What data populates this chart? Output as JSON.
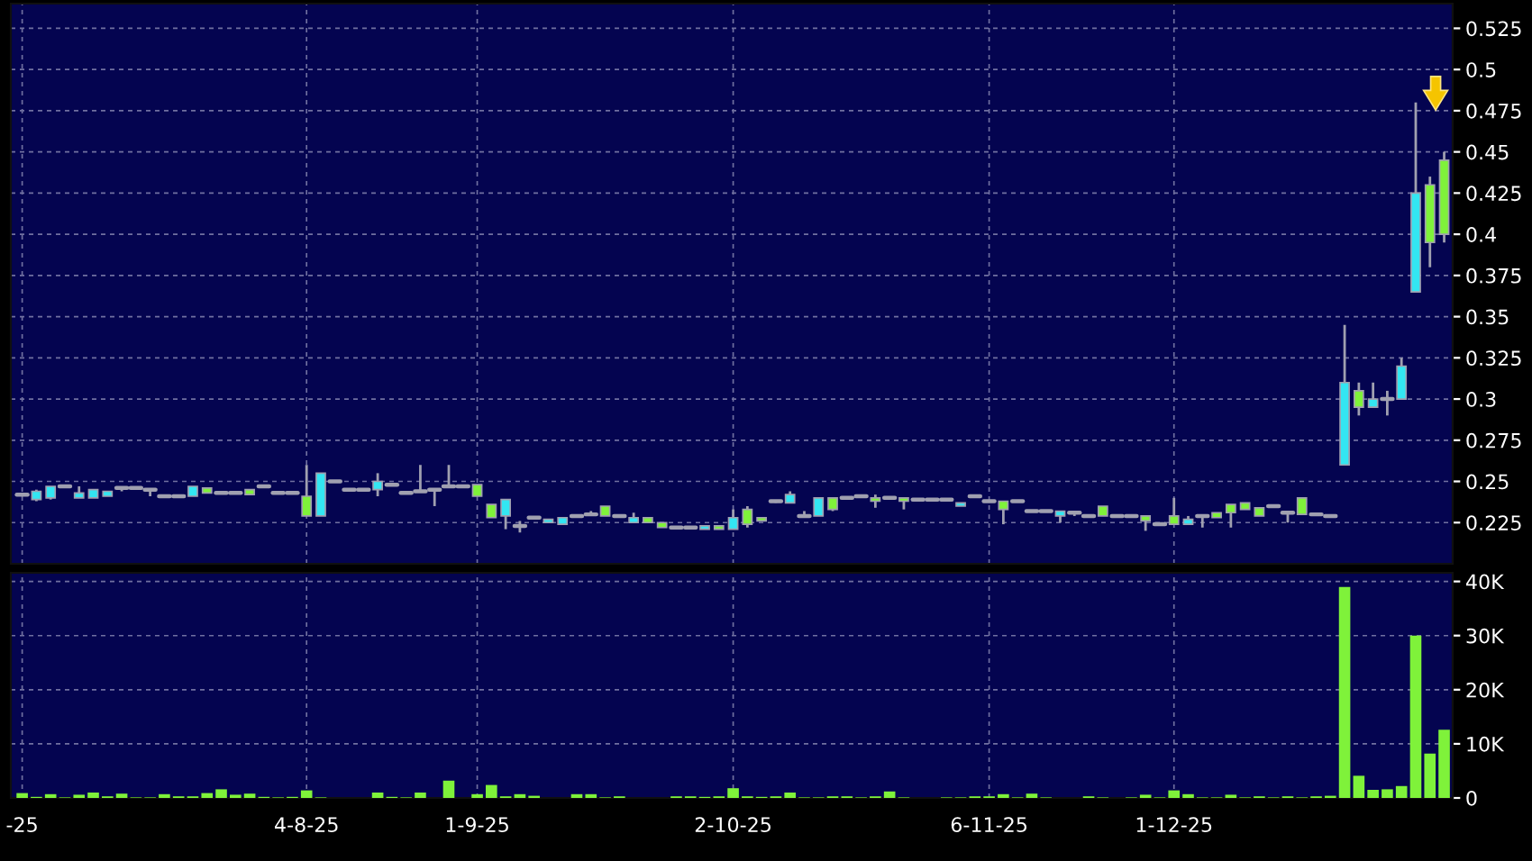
{
  "chart_data": [
    {
      "type": "candlestick",
      "tick_labels": "y",
      "grid": true,
      "categories": [
        null,
        null,
        null,
        null,
        null,
        null,
        null,
        null,
        null,
        null,
        null,
        null,
        null,
        null,
        null,
        null,
        null,
        null,
        null,
        null,
        null,
        null,
        null,
        null,
        null,
        null,
        null,
        null,
        null,
        null,
        null,
        null,
        null,
        null,
        null,
        null,
        null,
        null,
        null,
        null,
        null,
        null,
        null,
        null,
        null,
        null,
        null,
        null,
        null,
        null,
        null,
        null,
        null,
        null,
        null,
        null,
        null,
        null,
        null,
        null,
        null,
        null,
        null,
        null,
        null,
        null,
        null,
        null,
        null,
        null,
        null,
        null,
        null,
        null,
        null,
        null,
        null,
        null,
        null,
        null,
        null,
        null,
        null,
        null,
        null,
        null,
        null,
        null,
        null,
        null,
        null,
        null,
        null,
        null,
        null,
        null,
        null,
        null,
        null,
        null,
        null
      ],
      "ohlc": [
        [
          0.242,
          0.243,
          0.241,
          0.242
        ],
        [
          0.239,
          0.245,
          0.238,
          0.244
        ],
        [
          0.24,
          0.247,
          0.239,
          0.247
        ],
        [
          0.247,
          0.247,
          0.247,
          0.247
        ],
        [
          0.24,
          0.247,
          0.24,
          0.243
        ],
        [
          0.24,
          0.245,
          0.24,
          0.245
        ],
        [
          0.241,
          0.244,
          0.241,
          0.244
        ],
        [
          0.246,
          0.247,
          0.244,
          0.246
        ],
        [
          0.246,
          0.246,
          0.246,
          0.246
        ],
        [
          0.245,
          0.245,
          0.241,
          0.245
        ],
        [
          0.241,
          0.241,
          0.241,
          0.241
        ],
        [
          0.241,
          0.241,
          0.241,
          0.241
        ],
        [
          0.241,
          0.247,
          0.241,
          0.247
        ],
        [
          0.246,
          0.246,
          0.243,
          0.243
        ],
        [
          0.243,
          0.243,
          0.243,
          0.243
        ],
        [
          0.243,
          0.243,
          0.243,
          0.243
        ],
        [
          0.245,
          0.245,
          0.242,
          0.242
        ],
        [
          0.247,
          0.247,
          0.246,
          0.247
        ],
        [
          0.243,
          0.243,
          0.243,
          0.243
        ],
        [
          0.243,
          0.243,
          0.243,
          0.243
        ],
        [
          0.241,
          0.26,
          0.229,
          0.229
        ],
        [
          0.229,
          0.255,
          0.229,
          0.255
        ],
        [
          0.25,
          0.25,
          0.25,
          0.25
        ],
        [
          0.245,
          0.245,
          0.245,
          0.245
        ],
        [
          0.245,
          0.245,
          0.245,
          0.245
        ],
        [
          0.245,
          0.255,
          0.241,
          0.25
        ],
        [
          0.248,
          0.248,
          0.248,
          0.248
        ],
        [
          0.243,
          0.243,
          0.243,
          0.243
        ],
        [
          0.244,
          0.26,
          0.244,
          0.244
        ],
        [
          0.245,
          0.245,
          0.235,
          0.245
        ],
        [
          0.247,
          0.26,
          0.247,
          0.247
        ],
        [
          0.247,
          0.247,
          0.247,
          0.247
        ],
        [
          0.248,
          0.248,
          0.241,
          0.241
        ],
        [
          0.236,
          0.236,
          0.228,
          0.228
        ],
        [
          0.229,
          0.239,
          0.221,
          0.239
        ],
        [
          0.223,
          0.226,
          0.219,
          0.223
        ],
        [
          0.228,
          0.228,
          0.228,
          0.228
        ],
        [
          0.225,
          0.227,
          0.225,
          0.227
        ],
        [
          0.224,
          0.228,
          0.224,
          0.228
        ],
        [
          0.229,
          0.229,
          0.229,
          0.229
        ],
        [
          0.23,
          0.232,
          0.23,
          0.23
        ],
        [
          0.235,
          0.235,
          0.229,
          0.229
        ],
        [
          0.229,
          0.229,
          0.229,
          0.229
        ],
        [
          0.225,
          0.231,
          0.225,
          0.228
        ],
        [
          0.228,
          0.228,
          0.225,
          0.225
        ],
        [
          0.225,
          0.225,
          0.222,
          0.222
        ],
        [
          0.222,
          0.222,
          0.222,
          0.222
        ],
        [
          0.222,
          0.222,
          0.222,
          0.222
        ],
        [
          0.221,
          0.223,
          0.221,
          0.223
        ],
        [
          0.223,
          0.223,
          0.221,
          0.221
        ],
        [
          0.221,
          0.233,
          0.221,
          0.228
        ],
        [
          0.233,
          0.235,
          0.222,
          0.224
        ],
        [
          0.228,
          0.228,
          0.226,
          0.226
        ],
        [
          0.238,
          0.238,
          0.237,
          0.238
        ],
        [
          0.237,
          0.244,
          0.237,
          0.242
        ],
        [
          0.229,
          0.232,
          0.229,
          0.229
        ],
        [
          0.229,
          0.24,
          0.229,
          0.24
        ],
        [
          0.24,
          0.24,
          0.232,
          0.233
        ],
        [
          0.24,
          0.24,
          0.24,
          0.24
        ],
        [
          0.241,
          0.241,
          0.241,
          0.241
        ],
        [
          0.24,
          0.242,
          0.234,
          0.238
        ],
        [
          0.24,
          0.24,
          0.24,
          0.24
        ],
        [
          0.24,
          0.24,
          0.233,
          0.238
        ],
        [
          0.239,
          0.239,
          0.239,
          0.239
        ],
        [
          0.239,
          0.239,
          0.239,
          0.239
        ],
        [
          0.239,
          0.239,
          0.239,
          0.239
        ],
        [
          0.235,
          0.237,
          0.235,
          0.237
        ],
        [
          0.241,
          0.241,
          0.241,
          0.241
        ],
        [
          0.238,
          0.238,
          0.238,
          0.238
        ],
        [
          0.238,
          0.238,
          0.224,
          0.233
        ],
        [
          0.238,
          0.238,
          0.238,
          0.238
        ],
        [
          0.232,
          0.232,
          0.232,
          0.232
        ],
        [
          0.232,
          0.232,
          0.232,
          0.232
        ],
        [
          0.229,
          0.232,
          0.225,
          0.232
        ],
        [
          0.231,
          0.231,
          0.229,
          0.231
        ],
        [
          0.229,
          0.229,
          0.229,
          0.229
        ],
        [
          0.235,
          0.235,
          0.229,
          0.229
        ],
        [
          0.229,
          0.229,
          0.229,
          0.229
        ],
        [
          0.229,
          0.229,
          0.229,
          0.229
        ],
        [
          0.229,
          0.229,
          0.22,
          0.226
        ],
        [
          0.224,
          0.224,
          0.224,
          0.224
        ],
        [
          0.229,
          0.24,
          0.224,
          0.224
        ],
        [
          0.224,
          0.229,
          0.224,
          0.227
        ],
        [
          0.229,
          0.229,
          0.222,
          0.229
        ],
        [
          0.231,
          0.231,
          0.228,
          0.228
        ],
        [
          0.236,
          0.236,
          0.222,
          0.231
        ],
        [
          0.237,
          0.237,
          0.233,
          0.233
        ],
        [
          0.234,
          0.234,
          0.229,
          0.229
        ],
        [
          0.235,
          0.236,
          0.234,
          0.235
        ],
        [
          0.231,
          0.232,
          0.225,
          0.231
        ],
        [
          0.24,
          0.24,
          0.23,
          0.23
        ],
        [
          0.23,
          0.23,
          0.23,
          0.23
        ],
        [
          0.229,
          0.229,
          0.229,
          0.229
        ],
        [
          0.26,
          0.345,
          0.26,
          0.31
        ],
        [
          0.305,
          0.31,
          0.29,
          0.295
        ],
        [
          0.295,
          0.31,
          0.295,
          0.3
        ],
        [
          0.3,
          0.305,
          0.29,
          0.3
        ],
        [
          0.3,
          0.325,
          0.3,
          0.32
        ],
        [
          0.365,
          0.48,
          0.365,
          0.425
        ],
        [
          0.43,
          0.435,
          0.38,
          0.395
        ],
        [
          0.445,
          0.45,
          0.395,
          0.4
        ]
      ],
      "colors": [
        "#a0a0b0",
        "#33e6f2",
        "#33e6f2",
        "#a0a0b0",
        "#33e6f2",
        "#33e6f2",
        "#33e6f2",
        "#a0a0b0",
        "#a0a0b0",
        "#a0a0b0",
        "#a0a0b0",
        "#a0a0b0",
        "#33e6f2",
        "#7ff23a",
        "#a0a0b0",
        "#a0a0b0",
        "#7ff23a",
        "#a0a0b0",
        "#a0a0b0",
        "#a0a0b0",
        "#7ff23a",
        "#33e6f2",
        "#a0a0b0",
        "#a0a0b0",
        "#a0a0b0",
        "#33e6f2",
        "#a0a0b0",
        "#a0a0b0",
        "#a0a0b0",
        "#a0a0b0",
        "#a0a0b0",
        "#a0a0b0",
        "#7ff23a",
        "#7ff23a",
        "#33e6f2",
        "#a0a0b0",
        "#a0a0b0",
        "#33e6f2",
        "#33e6f2",
        "#a0a0b0",
        "#a0a0b0",
        "#7ff23a",
        "#a0a0b0",
        "#33e6f2",
        "#7ff23a",
        "#7ff23a",
        "#a0a0b0",
        "#a0a0b0",
        "#33e6f2",
        "#7ff23a",
        "#33e6f2",
        "#7ff23a",
        "#7ff23a",
        "#a0a0b0",
        "#33e6f2",
        "#a0a0b0",
        "#33e6f2",
        "#7ff23a",
        "#a0a0b0",
        "#a0a0b0",
        "#7ff23a",
        "#a0a0b0",
        "#7ff23a",
        "#a0a0b0",
        "#a0a0b0",
        "#a0a0b0",
        "#33e6f2",
        "#a0a0b0",
        "#a0a0b0",
        "#7ff23a",
        "#a0a0b0",
        "#a0a0b0",
        "#a0a0b0",
        "#33e6f2",
        "#a0a0b0",
        "#a0a0b0",
        "#7ff23a",
        "#a0a0b0",
        "#a0a0b0",
        "#7ff23a",
        "#a0a0b0",
        "#7ff23a",
        "#33e6f2",
        "#a0a0b0",
        "#7ff23a",
        "#7ff23a",
        "#7ff23a",
        "#7ff23a",
        "#a0a0b0",
        "#a0a0b0",
        "#7ff23a",
        "#a0a0b0",
        "#a0a0b0",
        "#33e6f2",
        "#7ff23a",
        "#33e6f2",
        "#a0a0b0",
        "#33e6f2",
        "#33e6f2",
        "#7ff23a",
        "#7ff23a"
      ],
      "ylim": [
        0.2,
        0.54
      ],
      "yticks": [
        0.225,
        0.25,
        0.275,
        0.3,
        0.325,
        0.35,
        0.375,
        0.4,
        0.425,
        0.45,
        0.475,
        0.5,
        0.525
      ]
    },
    {
      "type": "bar",
      "grid": true,
      "color": "#7ff23a",
      "categories": [
        "-25",
        null,
        null,
        null,
        null,
        null,
        null,
        null,
        null,
        null,
        null,
        null,
        null,
        null,
        null,
        null,
        null,
        null,
        null,
        null,
        "4-8-25",
        null,
        null,
        null,
        null,
        null,
        null,
        null,
        null,
        null,
        null,
        null,
        "1-9-25",
        null,
        null,
        null,
        null,
        null,
        null,
        null,
        null,
        null,
        null,
        null,
        null,
        null,
        null,
        null,
        null,
        null,
        "2-10-25",
        null,
        null,
        null,
        null,
        null,
        null,
        null,
        null,
        null,
        null,
        null,
        null,
        null,
        null,
        null,
        null,
        null,
        "6-11-25",
        null,
        null,
        null,
        null,
        null,
        null,
        null,
        null,
        null,
        null,
        null,
        null,
        "1-12-25",
        null,
        null,
        null,
        null,
        null,
        null,
        null,
        null,
        null,
        null,
        null,
        null,
        null,
        null,
        null,
        null,
        null,
        null,
        null
      ],
      "values": [
        900,
        200,
        700,
        100,
        600,
        1000,
        300,
        800,
        100,
        100,
        700,
        300,
        300,
        900,
        1600,
        600,
        800,
        200,
        100,
        200,
        1400,
        100,
        0,
        0,
        0,
        1000,
        200,
        100,
        1000,
        0,
        3200,
        0,
        700,
        2400,
        300,
        700,
        400,
        0,
        0,
        700,
        700,
        100,
        300,
        0,
        0,
        0,
        300,
        300,
        200,
        300,
        1800,
        300,
        200,
        300,
        1000,
        100,
        100,
        300,
        300,
        100,
        300,
        1200,
        100,
        0,
        0,
        100,
        100,
        300,
        300,
        700,
        100,
        800,
        100,
        0,
        0,
        300,
        100,
        0,
        100,
        600,
        100,
        1400,
        700,
        100,
        100,
        600,
        100,
        300,
        100,
        300,
        100,
        300,
        400,
        39000,
        4100,
        1500,
        1600,
        2200,
        30000,
        8200,
        12600
      ],
      "ylim": [
        0,
        41600
      ],
      "yticks": [
        0,
        {
          "value": 10000,
          "label": "10K"
        },
        {
          "value": 20000,
          "label": "20K"
        },
        {
          "value": 30000,
          "label": "30K"
        },
        {
          "value": 40000,
          "label": "40K"
        }
      ]
    }
  ]
}
